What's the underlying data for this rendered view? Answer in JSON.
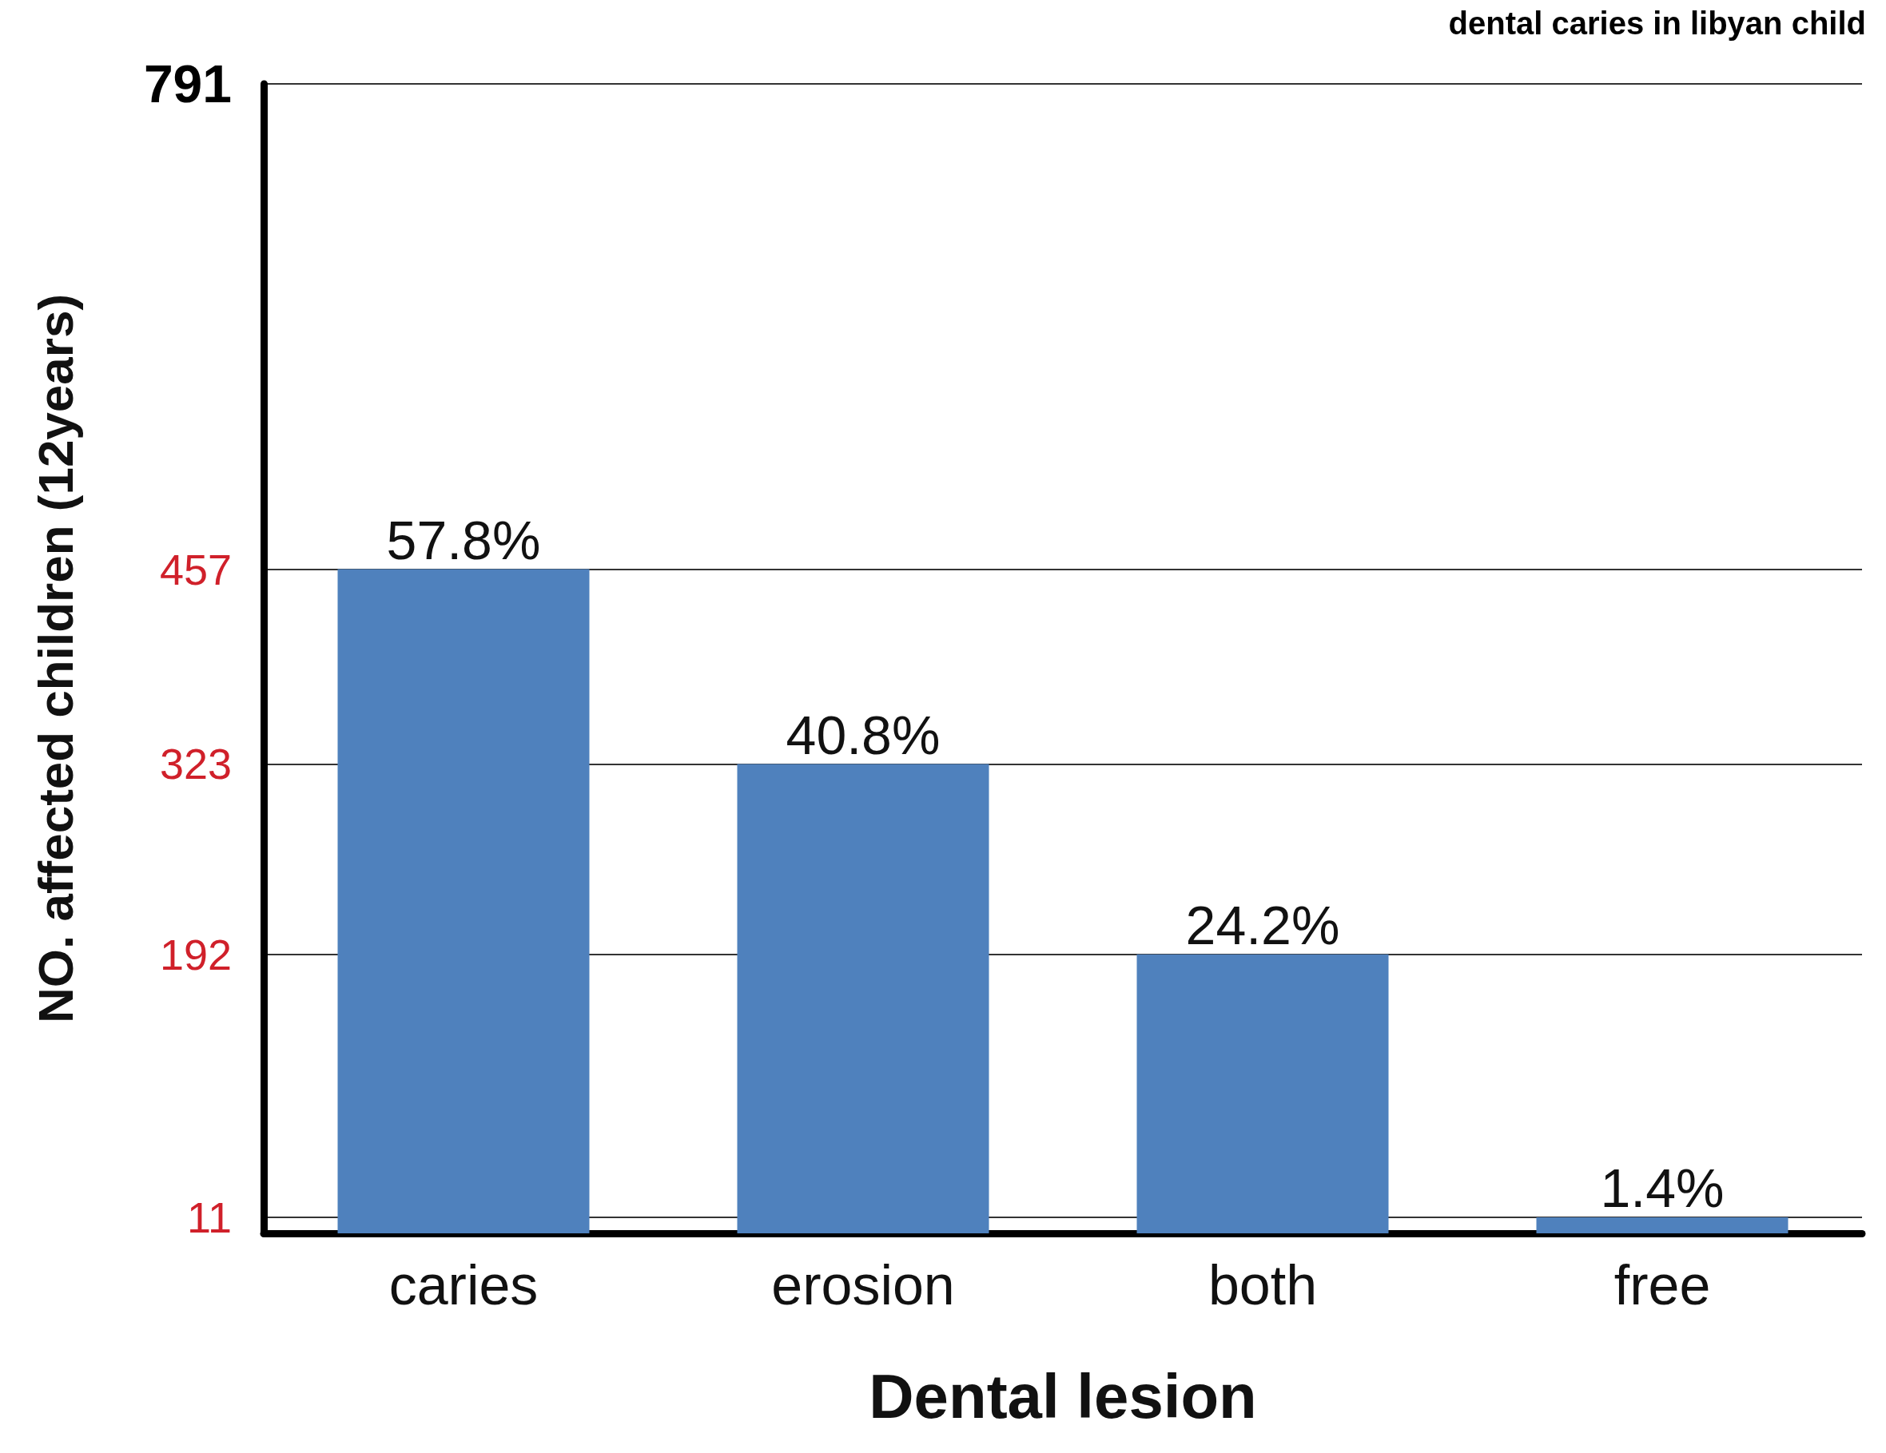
{
  "chart_data": {
    "type": "bar",
    "title": "dental caries in libyan child",
    "xlabel": "Dental lesion",
    "ylabel": "NO. affected children (12years)",
    "categories": [
      "caries",
      "erosion",
      "both",
      "free"
    ],
    "values": [
      457,
      323,
      192,
      11
    ],
    "color": "#4f81bd",
    "annotations": [
      {
        "text": "57.8%",
        "x": "caries",
        "y": 457
      },
      {
        "text": "40.8%",
        "x": "erosion",
        "y": 323
      },
      {
        "text": "24.2%",
        "x": "both",
        "y": 192
      },
      {
        "text": "1.4%",
        "x": "free",
        "y": 11
      }
    ],
    "ylim": [
      0,
      791
    ],
    "yticks": [
      11,
      192,
      323,
      457,
      791
    ],
    "grid": "y"
  }
}
